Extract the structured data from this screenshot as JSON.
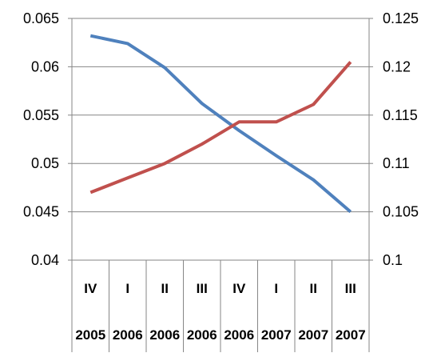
{
  "chart_data": {
    "type": "line",
    "categories": [
      [
        "IV",
        "2005"
      ],
      [
        "I",
        "2006"
      ],
      [
        "II",
        "2006"
      ],
      [
        "III",
        "2006"
      ],
      [
        "IV",
        "2006"
      ],
      [
        "I",
        "2007"
      ],
      [
        "II",
        "2007"
      ],
      [
        "III",
        "2007"
      ]
    ],
    "series": [
      {
        "axis": "left",
        "color": "#4f81bd",
        "values": [
          0.0632,
          0.0624,
          0.0599,
          0.0562,
          0.0534,
          0.0508,
          0.0483,
          0.045
        ]
      },
      {
        "axis": "right",
        "color": "#c0504d",
        "values": [
          0.107,
          0.1085,
          0.11,
          0.112,
          0.1143,
          0.1143,
          0.1161,
          0.1205
        ]
      }
    ],
    "y_left": {
      "range": [
        0.04,
        0.065
      ],
      "ticks": [
        "0.04",
        "0.045",
        "0.05",
        "0.055",
        "0.06",
        "0.065"
      ]
    },
    "y_right": {
      "range": [
        0.1,
        0.125
      ],
      "ticks": [
        "0.1",
        "0.105",
        "0.11",
        "0.115",
        "0.12",
        "0.125"
      ]
    },
    "grid": "horizontal",
    "legend": "none",
    "gridline_color": "#868686"
  }
}
